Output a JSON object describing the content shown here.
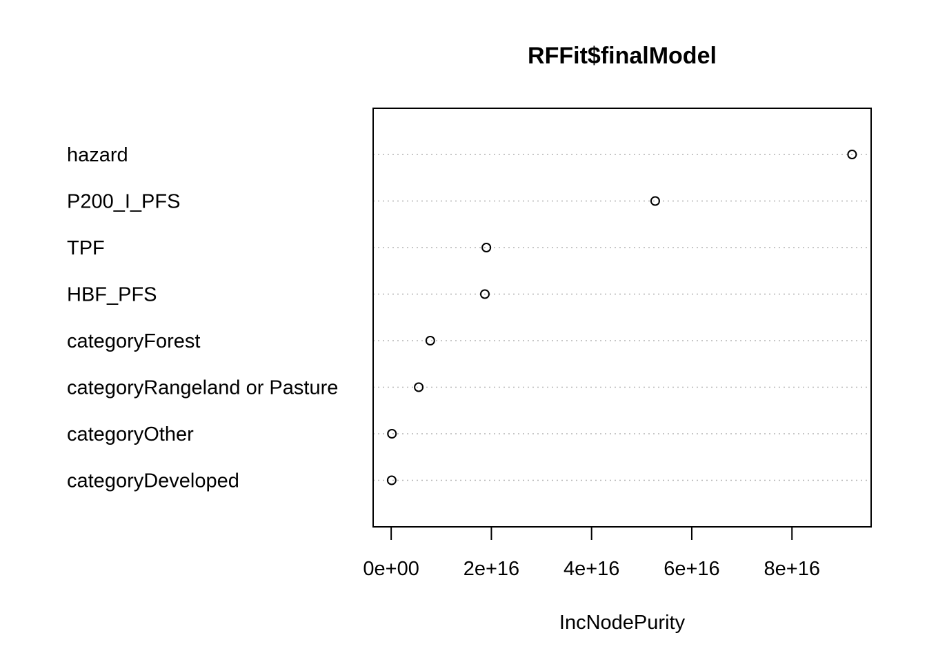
{
  "chart_data": {
    "type": "scatter",
    "title": "RFFit$finalModel",
    "xlabel": "IncNodePurity",
    "ylabel": "",
    "categories": [
      "hazard",
      "P200_I_PFS",
      "TPF",
      "HBF_PFS",
      "categoryForest",
      "categoryRangeland or Pasture",
      "categoryOther",
      "categoryDeveloped"
    ],
    "values": [
      9.2e+16,
      5.27e+16,
      1.9e+16,
      1.87e+16,
      7800000000000000.0,
      5500000000000000.0,
      150000000000000.0,
      100000000000000.0
    ],
    "xticks": [
      0,
      2e+16,
      4e+16,
      6e+16,
      8e+16
    ],
    "xtick_labels": [
      "0e+00",
      "2e+16",
      "4e+16",
      "6e+16",
      "8e+16"
    ],
    "xlim": [
      -3600000000000000.0,
      9.58e+16
    ],
    "grid": "dotted horizontal",
    "legend": "none"
  }
}
